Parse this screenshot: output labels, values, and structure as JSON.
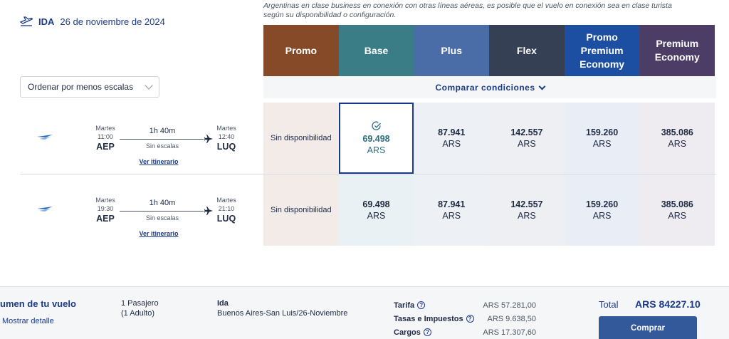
{
  "notice": {
    "line1": "Argentinas en clase business en conexión con otras líneas aéreas, es posible que el vuelo en conexión sea en clase turista",
    "line2": "según su disponibilidad o configuración."
  },
  "route": {
    "direction": "IDA",
    "date": "26 de noviembre de 2024"
  },
  "sort": {
    "label": "Ordenar por menos escalas"
  },
  "fares": [
    {
      "name": "Promo",
      "color": "#874a28"
    },
    {
      "name": "Base",
      "color": "#3a7d87"
    },
    {
      "name": "Plus",
      "color": "#4a6da8"
    },
    {
      "name": "Flex",
      "color": "#354054"
    },
    {
      "name": "Promo Premium Economy",
      "color": "#1c4ea2"
    },
    {
      "name": "Premium Economy",
      "color": "#4b3d66"
    }
  ],
  "compare_label": "Comparar condiciones",
  "flights": [
    {
      "dep_day": "Martes",
      "dep_time": "11:00",
      "dep_code": "AEP",
      "arr_day": "Martes",
      "arr_time": "12:40",
      "arr_code": "LUQ",
      "duration": "1h 40m",
      "stops": "Sin escalas",
      "itinerary_link": "Ver itinerario",
      "fares": [
        {
          "unavailable": "Sin disponibilidad"
        },
        {
          "price": "69.498",
          "currency": "ARS",
          "selected": true
        },
        {
          "price": "87.941",
          "currency": "ARS"
        },
        {
          "price": "142.557",
          "currency": "ARS"
        },
        {
          "price": "159.260",
          "currency": "ARS"
        },
        {
          "price": "385.086",
          "currency": "ARS"
        }
      ]
    },
    {
      "dep_day": "Martes",
      "dep_time": "19:30",
      "dep_code": "AEP",
      "arr_day": "Martes",
      "arr_time": "21:10",
      "arr_code": "LUQ",
      "duration": "1h 40m",
      "stops": "Sin escalas",
      "itinerary_link": "Ver itinerario",
      "fares": [
        {
          "unavailable": "Sin disponibilidad"
        },
        {
          "price": "69.498",
          "currency": "ARS"
        },
        {
          "price": "87.941",
          "currency": "ARS"
        },
        {
          "price": "142.557",
          "currency": "ARS"
        },
        {
          "price": "159.260",
          "currency": "ARS"
        },
        {
          "price": "385.086",
          "currency": "ARS"
        }
      ]
    }
  ],
  "cell_bg": [
    "#f2ebe7",
    "#eaf1f4",
    "#edf0f5",
    "#edeff2",
    "#e9eef6",
    "#eeecf1"
  ],
  "summary": {
    "title": "umen de tu vuelo",
    "detail_link": "Mostrar detalle",
    "pax_line1": "1 Pasajero",
    "pax_line2": "(1 Adulto)",
    "leg_title": "Ida",
    "leg_route": "Buenos Aires-San Luis/26-Noviembre",
    "breakdown": [
      {
        "label": "Tarifa",
        "value": "ARS 57.281,00"
      },
      {
        "label": "Tasas e Impuestos",
        "value": "ARS 9.638,50"
      },
      {
        "label": "Cargos",
        "value": "ARS 17.307,60"
      }
    ],
    "total_label": "Total",
    "total_value": "ARS 84227.10",
    "buy_label": "Comprar"
  }
}
